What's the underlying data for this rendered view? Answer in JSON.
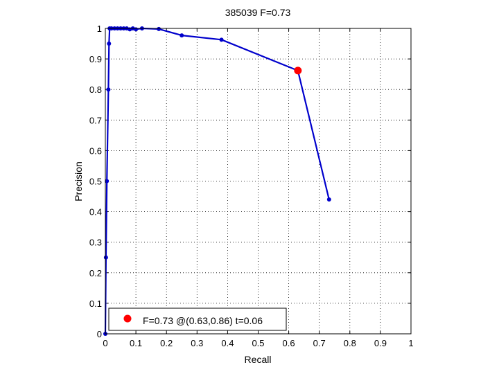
{
  "chart_data": {
    "type": "line",
    "title": "385039 F=0.73",
    "xlabel": "Recall",
    "ylabel": "Precision",
    "xlim": [
      0,
      1
    ],
    "ylim": [
      0,
      1
    ],
    "xticks": [
      "0",
      "0.1",
      "0.2",
      "0.3",
      "0.4",
      "0.5",
      "0.6",
      "0.7",
      "0.8",
      "0.9",
      "1"
    ],
    "yticks": [
      "0",
      "0.1",
      "0.2",
      "0.3",
      "0.4",
      "0.5",
      "0.6",
      "0.7",
      "0.8",
      "0.9",
      "1"
    ],
    "grid": "dotted",
    "legend_position": "bottom-left",
    "series": [
      {
        "color": "#0000cc",
        "points": [
          [
            0.0,
            0.0
          ],
          [
            0.002,
            0.25
          ],
          [
            0.005,
            0.5
          ],
          [
            0.01,
            0.8
          ],
          [
            0.012,
            0.95
          ],
          [
            0.014,
            1.0
          ],
          [
            0.02,
            1.0
          ],
          [
            0.03,
            1.0
          ],
          [
            0.04,
            1.0
          ],
          [
            0.05,
            1.0
          ],
          [
            0.06,
            1.0
          ],
          [
            0.07,
            1.0
          ],
          [
            0.08,
            0.997
          ],
          [
            0.09,
            1.0
          ],
          [
            0.1,
            0.997
          ],
          [
            0.12,
            1.0
          ],
          [
            0.175,
            0.998
          ],
          [
            0.25,
            0.977
          ],
          [
            0.38,
            0.963
          ],
          [
            0.63,
            0.862
          ],
          [
            0.732,
            0.44
          ]
        ]
      }
    ],
    "highlight": {
      "x": 0.63,
      "y": 0.862,
      "color": "#ff0000",
      "legend_label": "F=0.73 @(0.63,0.86) t=0.06"
    }
  }
}
